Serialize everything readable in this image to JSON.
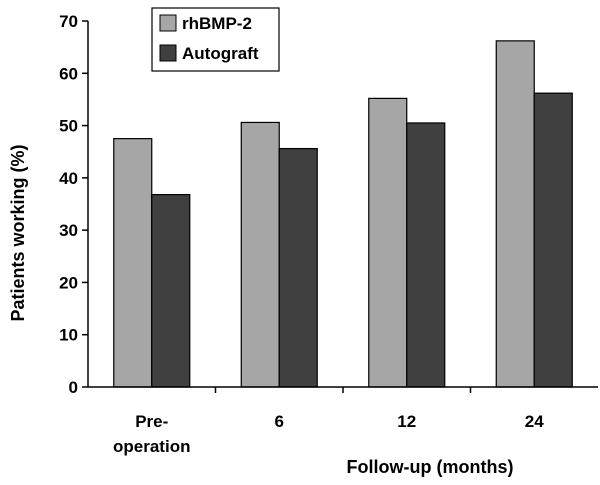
{
  "chart_data": {
    "type": "bar",
    "title": "",
    "ylabel": "Patients working (%)",
    "xlabel": "Follow-up (months)",
    "categories": [
      [
        "Pre-",
        "operation"
      ],
      [
        "6"
      ],
      [
        "12"
      ],
      [
        "24"
      ]
    ],
    "series": [
      {
        "name": "rhBMP-2",
        "color": "#a6a6a6",
        "values": [
          47.5,
          50.6,
          55.2,
          66.2
        ]
      },
      {
        "name": "Autograft",
        "color": "#404040",
        "values": [
          36.8,
          45.6,
          50.5,
          56.2
        ]
      }
    ],
    "ylim": [
      0,
      70
    ],
    "yticks": [
      0,
      10,
      20,
      30,
      40,
      50,
      60,
      70
    ],
    "grid": false,
    "legend": "top-left"
  }
}
